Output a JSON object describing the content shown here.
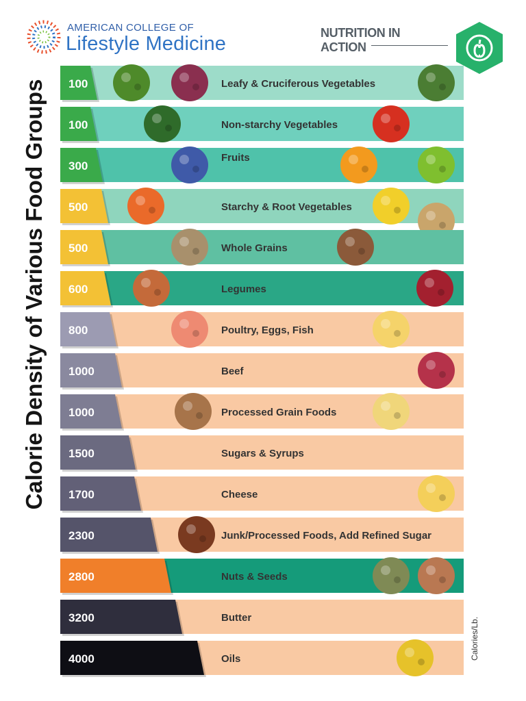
{
  "header": {
    "org_top": "AMERICAN COLLEGE OF",
    "org_main": "Lifestyle Medicine",
    "series_title": "NUTRITION IN ACTION",
    "badge_icon": "apple-icon"
  },
  "unit_label": "Calories/Lb.",
  "colors": {
    "green_strip": "#3aaa4a",
    "yellow_strip": "#f3c135",
    "purple_strip": "#9c9bb2",
    "orange_strip": "#f07f2a",
    "peach_bar": "#f9c9a3",
    "teal_light": "#9ddcc9",
    "teal_mid": "#6fd0bd",
    "teal": "#4fc2aa",
    "teal_dark": "#2aa786",
    "brand_blue": "#2f73c4",
    "badge_green": "#27b16b"
  },
  "chart_data": {
    "type": "bar",
    "title": "Calorie Density of Various Food Groups",
    "unit": "Calories/Lb.",
    "categories": [
      "Leafy & Cruciferous Vegetables",
      "Non-starchy Vegetables",
      "Fruits",
      "Starchy & Root Vegetables",
      "Whole Grains",
      "Legumes",
      "Poultry, Eggs, Fish",
      "Beef",
      "Processed Grain Foods",
      "Sugars & Syrups",
      "Cheese",
      "Junk/Processed Foods, Add Refined Sugar",
      "Nuts & Seeds",
      "Butter",
      "Oils"
    ],
    "values": [
      100,
      100,
      300,
      500,
      500,
      600,
      800,
      1000,
      1000,
      1500,
      1700,
      2300,
      2800,
      3200,
      4000
    ],
    "strip_colors": [
      "#3aaa4a",
      "#3aaa4a",
      "#3aaa4a",
      "#f3c135",
      "#f3c135",
      "#f3c135",
      "#9c9bb2",
      "#8a899f",
      "#7e7d93",
      "#6b6a80",
      "#626077",
      "#55546a",
      "#f07f2a",
      "#2f2e3d",
      "#0e0e14"
    ],
    "bar_colors": [
      "#9ddcc9",
      "#6fd0bd",
      "#4fc2aa",
      "#8fd5bd",
      "#5fc0a2",
      "#2aa786",
      "#f9c9a3",
      "#f9c9a3",
      "#f9c9a3",
      "#f9c9a3",
      "#f9c9a3",
      "#f9c9a3",
      "#159b7a",
      "#f9c9a3",
      "#f9c9a3"
    ],
    "foods": [
      {
        "images": [
          "broccoli-icon",
          "salad-greens-icon",
          "kale-leaf-icon"
        ]
      },
      {
        "images": [
          "cucumber-icon",
          "tomato-icon"
        ]
      },
      {
        "images": [
          "blueberries-icon",
          "orange-slice-icon",
          "kiwi-icon"
        ]
      },
      {
        "images": [
          "carrots-icon",
          "corn-icon",
          "potatoes-icon"
        ]
      },
      {
        "images": [
          "wild-rice-icon",
          "quinoa-icon"
        ]
      },
      {
        "images": [
          "lentils-icon",
          "kidney-beans-icon"
        ]
      },
      {
        "images": [
          "salmon-icon",
          "eggs-icon"
        ]
      },
      {
        "images": [
          "beef-steak-icon"
        ]
      },
      {
        "images": [
          "cereal-biscuit-icon",
          "pasta-icon"
        ]
      },
      {
        "images": []
      },
      {
        "images": [
          "swiss-cheese-icon"
        ]
      },
      {
        "images": [
          "soda-fries-icon"
        ]
      },
      {
        "images": [
          "pumpkin-seeds-icon",
          "almonds-icon"
        ]
      },
      {
        "images": []
      },
      {
        "images": [
          "olive-oil-bottle-icon"
        ]
      }
    ]
  }
}
